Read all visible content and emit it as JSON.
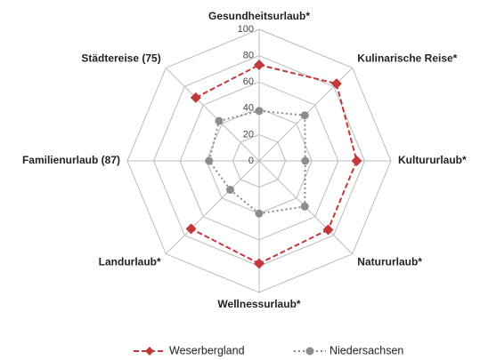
{
  "chart_data": {
    "type": "radar",
    "categories": [
      "Gesundheitsurlaub*",
      "Kulinarische Reise*",
      "Kultururlaub*",
      "Natururlaub*",
      "Wellnessurlaub*",
      "Landurlaub*",
      "Familienurlaub (87)",
      "Städtereise (75)"
    ],
    "series": [
      {
        "name": "Weserbergland",
        "color": "#c0393b",
        "values": [
          73,
          83,
          74,
          74,
          78,
          73,
          null,
          68
        ]
      },
      {
        "name": "Niedersachsen",
        "color": "#8c8c8c",
        "values": [
          38,
          49,
          35,
          49,
          40,
          31,
          38,
          43
        ]
      }
    ],
    "ylim": [
      0,
      100
    ],
    "yticks": [
      0,
      20,
      40,
      60,
      80,
      100
    ],
    "grid": true,
    "legend": "bottom"
  }
}
